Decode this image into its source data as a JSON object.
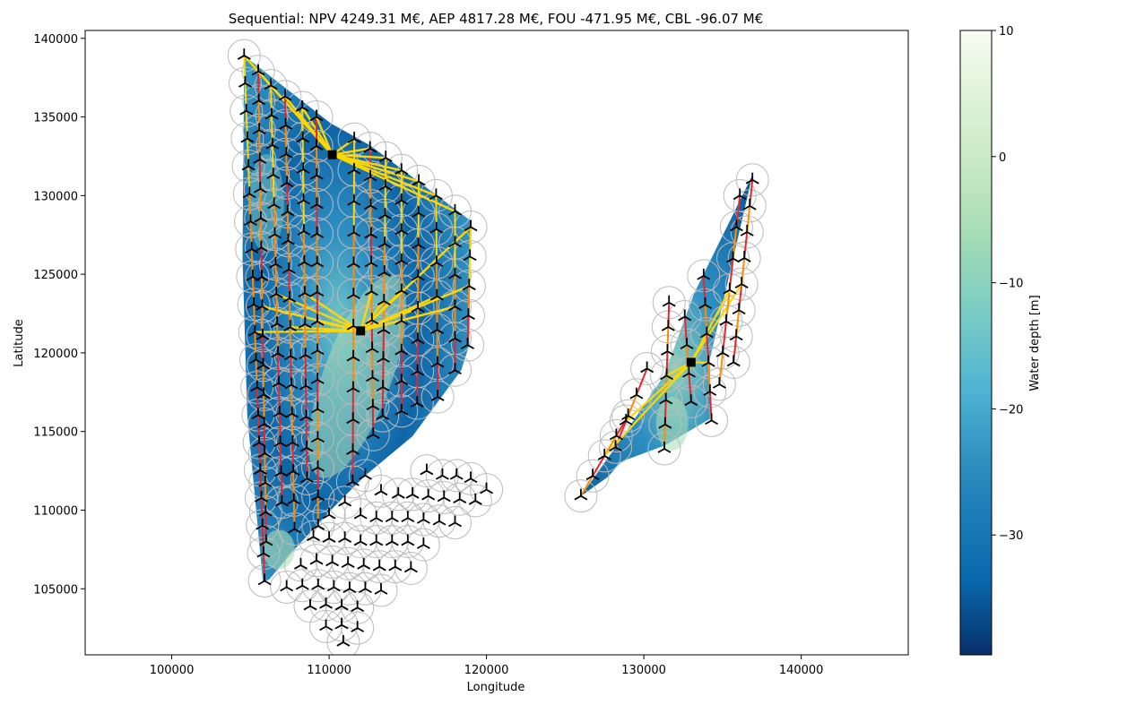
{
  "chart_data": {
    "type": "scatter",
    "title": "Sequential: NPV 4249.31 M€, AEP 4817.28 M€, FOU -471.95 M€, CBL -96.07 M€",
    "xlabel": "Longitude",
    "ylabel": "Latitude",
    "xlim": [
      94500,
      146800
    ],
    "ylim": [
      100800,
      140500
    ],
    "x_ticks": [
      100000,
      110000,
      120000,
      130000,
      140000
    ],
    "y_ticks": [
      105000,
      110000,
      115000,
      120000,
      125000,
      130000,
      135000,
      140000
    ],
    "grid": false,
    "colorbar": {
      "label": "Water depth [m]",
      "range": [
        -39.5,
        10
      ],
      "ticks": [
        10,
        0,
        -10,
        -20,
        -30
      ],
      "colormap": "GnBu_r",
      "colors": [
        "#08306b",
        "#0868ac",
        "#2b8cbe",
        "#4eb3d3",
        "#7bccc4",
        "#a8ddb5",
        "#ccebc5",
        "#e0f3db",
        "#f7fcf0"
      ]
    },
    "substations": [
      {
        "x": 110200,
        "y": 132600
      },
      {
        "x": 112000,
        "y": 121400
      },
      {
        "x": 133000,
        "y": 119400
      }
    ],
    "cable_colors": {
      "low": "#ffd700",
      "mid": "#ff8c00",
      "high": "#e8272b"
    },
    "turbine_color": "#000000",
    "footprint_color": "#bbbbbb"
  }
}
